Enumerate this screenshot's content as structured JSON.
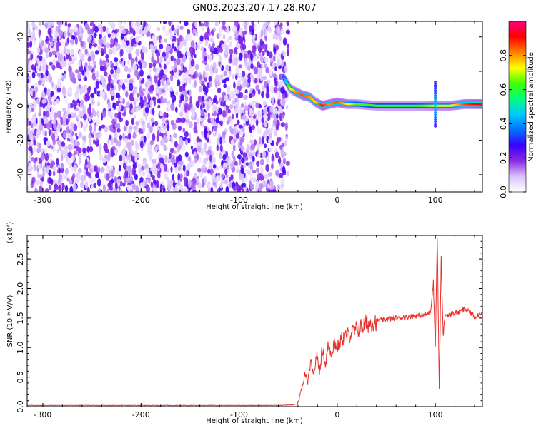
{
  "figure": {
    "title": "GN03.2023.207.17.28.R07"
  },
  "chart_data": [
    {
      "type": "heatmap",
      "xlabel": "Height of straight line (km)",
      "ylabel": "Frequency (Hz)",
      "xlim": [
        -316,
        148
      ],
      "ylim": [
        -50,
        49
      ],
      "xticks": [
        -300,
        -200,
        -100,
        0,
        100
      ],
      "yticks": [
        -40,
        -20,
        0,
        20,
        40
      ],
      "colorbar": {
        "label": "Normalized spectral amplitude",
        "range": [
          0.0,
          1.0
        ],
        "ticks": [
          "0.0",
          "0.2",
          "0.4",
          "0.6",
          "0.8"
        ],
        "colors": [
          "#ffffff",
          "#d9c2ff",
          "#8a2be2",
          "#3a00ff",
          "#0070ff",
          "#00c8ff",
          "#00ff80",
          "#40ff00",
          "#ffff00",
          "#ff8000",
          "#ff0000",
          "#ff0080"
        ]
      },
      "noise_region": {
        "x_range": [
          -316,
          -50
        ],
        "f_range": [
          -50,
          49
        ]
      },
      "ridge": [
        {
          "x": -55,
          "f": 17,
          "amp": 0.35
        },
        {
          "x": -48,
          "f": 10,
          "amp": 0.7
        },
        {
          "x": -42,
          "f": 8,
          "amp": 0.8
        },
        {
          "x": -35,
          "f": 6,
          "amp": 0.85
        },
        {
          "x": -28,
          "f": 5,
          "amp": 0.8
        },
        {
          "x": -22,
          "f": 2,
          "amp": 0.75
        },
        {
          "x": -15,
          "f": 0,
          "amp": 0.9
        },
        {
          "x": -8,
          "f": 1,
          "amp": 0.8
        },
        {
          "x": 0,
          "f": 2,
          "amp": 0.85
        },
        {
          "x": 10,
          "f": 1,
          "amp": 0.75
        },
        {
          "x": 20,
          "f": 1,
          "amp": 0.65
        },
        {
          "x": 40,
          "f": 0,
          "amp": 0.6
        },
        {
          "x": 60,
          "f": 0,
          "amp": 0.6
        },
        {
          "x": 80,
          "f": 0,
          "amp": 0.6
        },
        {
          "x": 100,
          "f": 0,
          "amp": 0.7
        },
        {
          "x": 115,
          "f": 0,
          "amp": 0.7
        },
        {
          "x": 130,
          "f": 1,
          "amp": 0.85
        },
        {
          "x": 148,
          "f": 1,
          "amp": 0.95
        }
      ]
    },
    {
      "type": "line",
      "xlabel": "Height of straight line (km)",
      "ylabel": "SNR (10 * V/V)",
      "y_multiplier": "(x10⁴)",
      "xlim": [
        -316,
        148
      ],
      "ylim": [
        0,
        2.9
      ],
      "xticks": [
        -300,
        -200,
        -100,
        0,
        100
      ],
      "yticks": [
        0.0,
        0.5,
        1.0,
        1.5,
        2.0,
        2.5
      ],
      "series": [
        {
          "color": "#e8312b",
          "x": [
            -316,
            -280,
            -240,
            -200,
            -160,
            -120,
            -80,
            -60,
            -45,
            -40,
            -36,
            -33,
            -30,
            -27,
            -24,
            -21,
            -18,
            -15,
            -12,
            -9,
            -6,
            -3,
            0,
            5,
            10,
            15,
            20,
            25,
            30,
            40,
            50,
            60,
            70,
            80,
            90,
            95,
            98,
            100,
            102,
            104,
            106,
            108,
            110,
            115,
            120,
            125,
            130,
            135,
            140,
            148
          ],
          "y": [
            0.02,
            0.02,
            0.02,
            0.02,
            0.02,
            0.02,
            0.02,
            0.02,
            0.03,
            0.05,
            0.3,
            0.55,
            0.4,
            0.75,
            0.5,
            0.9,
            0.6,
            1.0,
            0.7,
            1.05,
            0.9,
            1.1,
            1.0,
            1.15,
            1.2,
            1.25,
            1.3,
            1.35,
            1.4,
            1.45,
            1.48,
            1.5,
            1.52,
            1.54,
            1.55,
            1.6,
            2.1,
            1.0,
            2.9,
            0.3,
            2.5,
            1.2,
            1.55,
            1.55,
            1.6,
            1.6,
            1.65,
            1.6,
            1.52,
            1.6
          ]
        }
      ]
    }
  ]
}
